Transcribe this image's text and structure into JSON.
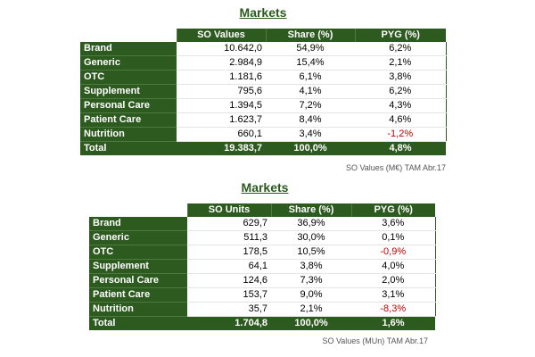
{
  "table1": {
    "title": "Markets",
    "headers": [
      "SO Values",
      "Share (%)",
      "PYG (%)"
    ],
    "rows": [
      {
        "label": "Brand",
        "v1": "10.642,0",
        "v2": "54,9%",
        "v3": "6,2%",
        "neg": false
      },
      {
        "label": "Generic",
        "v1": "2.984,9",
        "v2": "15,4%",
        "v3": "2,1%",
        "neg": false
      },
      {
        "label": "OTC",
        "v1": "1.181,6",
        "v2": "6,1%",
        "v3": "3,8%",
        "neg": false
      },
      {
        "label": "Supplement",
        "v1": "795,6",
        "v2": "4,1%",
        "v3": "6,2%",
        "neg": false
      },
      {
        "label": "Personal Care",
        "v1": "1.394,5",
        "v2": "7,2%",
        "v3": "4,3%",
        "neg": false
      },
      {
        "label": "Patient Care",
        "v1": "1.623,7",
        "v2": "8,4%",
        "v3": "4,6%",
        "neg": false
      },
      {
        "label": "Nutrition",
        "v1": "660,1",
        "v2": "3,4%",
        "v3": "-1,2%",
        "neg": true
      }
    ],
    "total": {
      "label": "Total",
      "v1": "19.383,7",
      "v2": "100,0%",
      "v3": "4,8%"
    },
    "note": "SO Values (M€) TAM Abr.17"
  },
  "table2": {
    "title": "Markets",
    "headers": [
      "SO Units",
      "Share (%)",
      "PYG (%)"
    ],
    "rows": [
      {
        "label": "Brand",
        "v1": "629,7",
        "v2": "36,9%",
        "v3": "3,6%",
        "neg": false
      },
      {
        "label": "Generic",
        "v1": "511,3",
        "v2": "30,0%",
        "v3": "0,1%",
        "neg": false
      },
      {
        "label": "OTC",
        "v1": "178,5",
        "v2": "10,5%",
        "v3": "-0,9%",
        "neg": true
      },
      {
        "label": "Supplement",
        "v1": "64,1",
        "v2": "3,8%",
        "v3": "4,0%",
        "neg": false
      },
      {
        "label": "Personal Care",
        "v1": "124,6",
        "v2": "7,3%",
        "v3": "2,0%",
        "neg": false
      },
      {
        "label": "Patient Care",
        "v1": "153,7",
        "v2": "9,0%",
        "v3": "3,1%",
        "neg": false
      },
      {
        "label": "Nutrition",
        "v1": "35,7",
        "v2": "2,1%",
        "v3": "-8,3%",
        "neg": true
      }
    ],
    "total": {
      "label": "Total",
      "v1": "1.704,8",
      "v2": "100,0%",
      "v3": "1,6%"
    },
    "note": "SO Values (MUn) TAM Abr.17"
  }
}
